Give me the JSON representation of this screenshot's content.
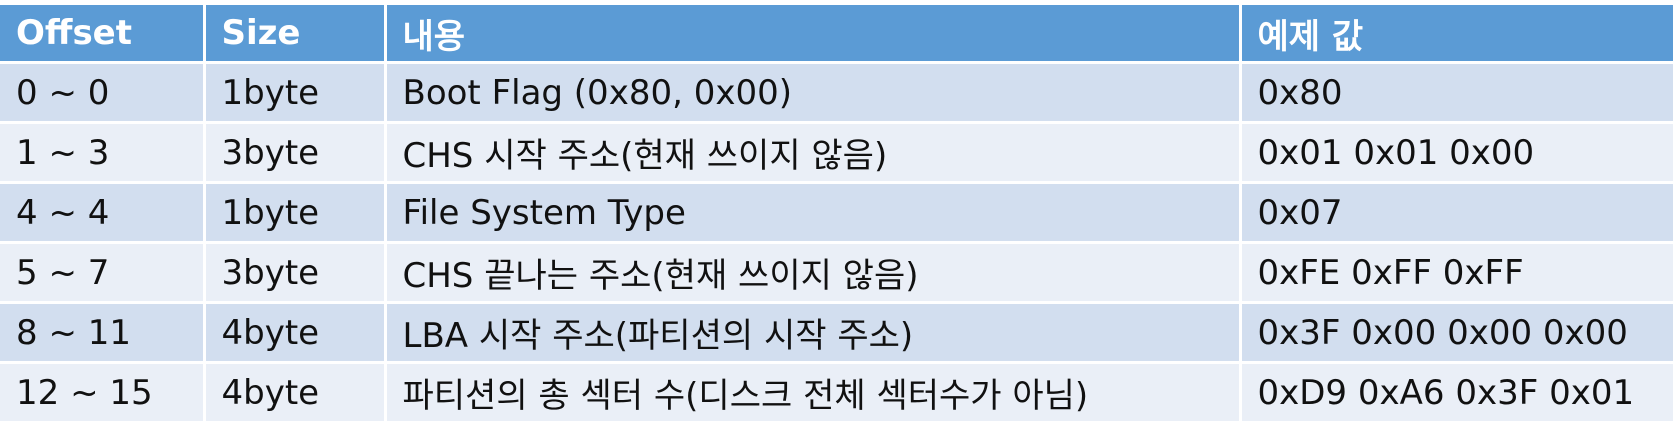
{
  "table": {
    "headers": [
      "Offset",
      "Size",
      "내용",
      "예제 값"
    ],
    "rows": [
      [
        "0 ~ 0",
        "1byte",
        "Boot Flag (0x80, 0x00)",
        "0x80"
      ],
      [
        "1 ~ 3",
        "3byte",
        "CHS 시작 주소(현재 쓰이지 않음)",
        "0x01 0x01 0x00"
      ],
      [
        "4 ~ 4",
        "1byte",
        "File System Type",
        "0x07"
      ],
      [
        "5 ~ 7",
        "3byte",
        "CHS 끝나는 주소(현재 쓰이지 않음)",
        "0xFE 0xFF 0xFF"
      ],
      [
        "8 ~ 11",
        "4byte",
        "LBA 시작 주소(파티션의 시작 주소)",
        "0x3F 0x00 0x00 0x00"
      ],
      [
        "12 ~ 15",
        "4byte",
        "파티션의 총 섹터 수(디스크 전체 섹터수가 아님)",
        "0xD9 0xA6 0x3F 0x01"
      ]
    ]
  }
}
